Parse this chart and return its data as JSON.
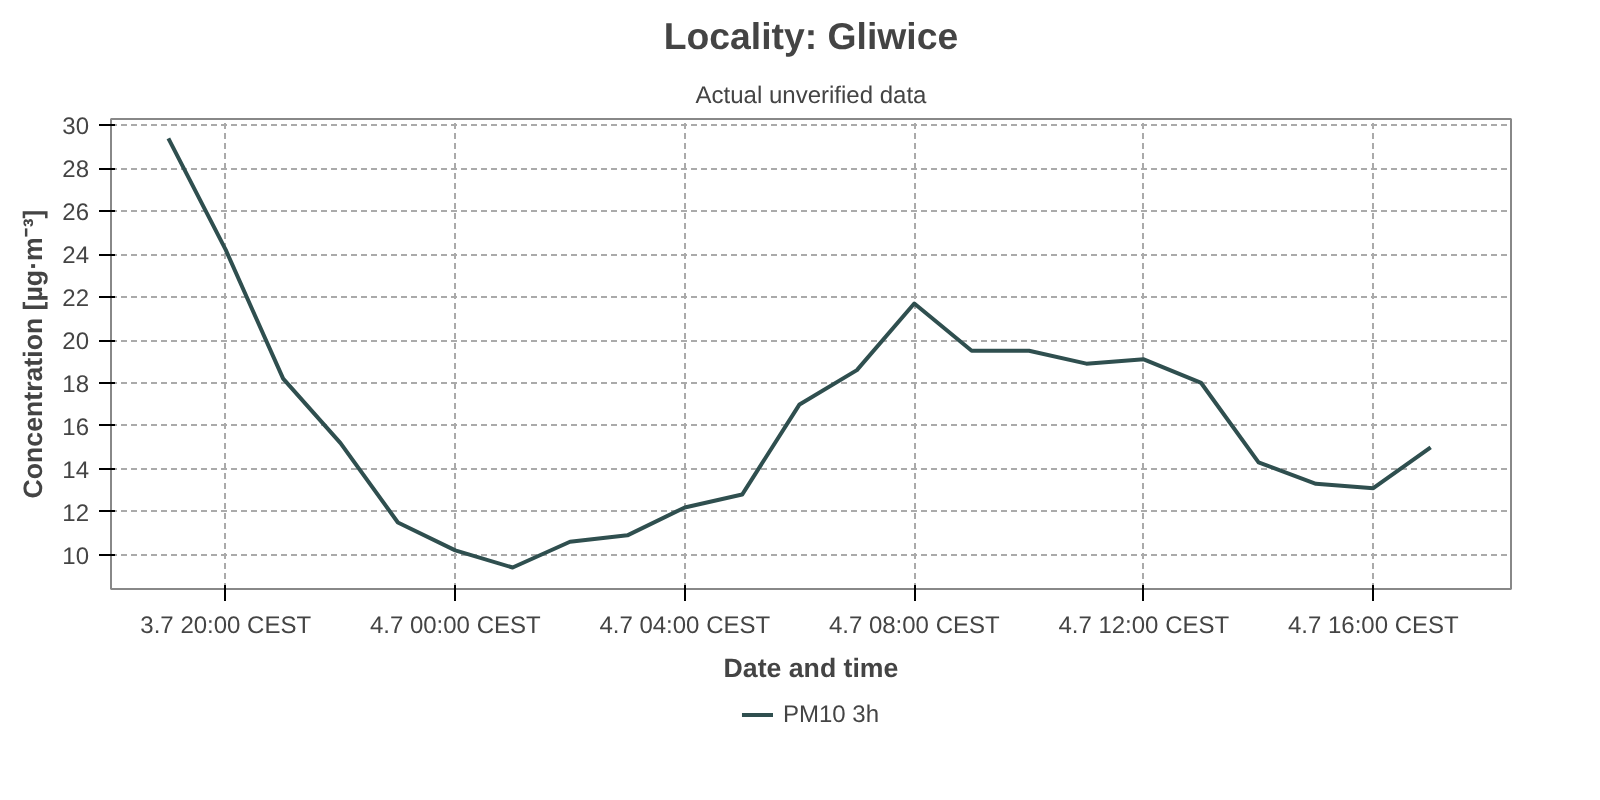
{
  "chart_data": {
    "type": "line",
    "title": "Locality: Gliwice",
    "subtitle": "Actual unverified data",
    "xlabel": "Date and time",
    "ylabel": "Concentration [µg·m⁻³]",
    "categories": [
      null,
      "3.7 20:00 CEST",
      null,
      null,
      null,
      "4.7 00:00 CEST",
      null,
      null,
      null,
      "4.7 04:00 CEST",
      null,
      null,
      null,
      "4.7 08:00 CEST",
      null,
      null,
      null,
      "4.7 12:00 CEST",
      null,
      null,
      null,
      "4.7 16:00 CEST",
      null
    ],
    "series": [
      {
        "name": "PM10 3h",
        "color": "#2f4f4f",
        "values": [
          29.4,
          24.2,
          18.2,
          15.2,
          11.5,
          10.2,
          9.4,
          10.6,
          10.9,
          12.2,
          12.8,
          17.0,
          18.6,
          21.7,
          19.5,
          19.5,
          18.9,
          19.1,
          18.0,
          14.3,
          13.3,
          13.1,
          15.0
        ]
      }
    ],
    "ylim": [
      8.4,
      30.3
    ],
    "yticks": [
      10,
      12,
      14,
      16,
      18,
      20,
      22,
      24,
      26,
      28,
      30
    ],
    "grid": true,
    "legend": "bottom",
    "marker": "none",
    "line_style": "solid"
  }
}
